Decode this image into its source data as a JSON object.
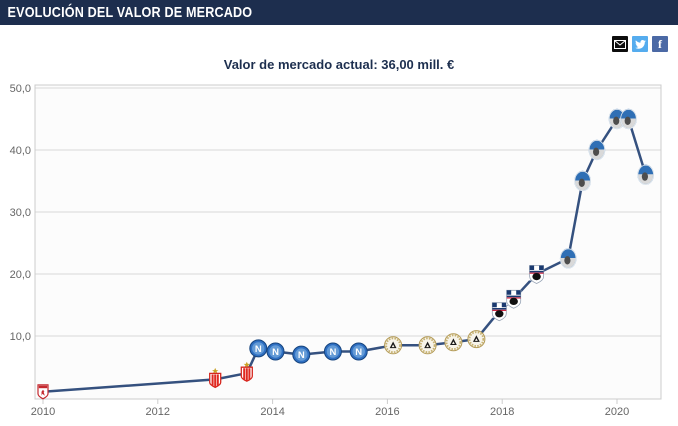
{
  "header": {
    "title": "EVOLUCIÓN DEL VALOR DE MERCADO"
  },
  "share": {
    "icons": [
      {
        "name": "email-share-icon"
      },
      {
        "name": "twitter-share-icon",
        "label": ""
      },
      {
        "name": "facebook-share-icon",
        "label": "f"
      }
    ]
  },
  "chart_data": {
    "type": "line",
    "title": "Evolución del valor de mercado",
    "subtitle": "Valor de mercado actual: 36,00 mill. €",
    "xlabel": "",
    "ylabel": "",
    "ylim": [
      0,
      52
    ],
    "yticks": [
      10,
      20,
      30,
      40,
      50
    ],
    "ytick_labels": [
      "10,0",
      "20,0",
      "30,0",
      "40,0",
      "50,0"
    ],
    "xticks": [
      2010,
      2012,
      2014,
      2016,
      2018,
      2020
    ],
    "xtick_labels": [
      "2010",
      "2012",
      "2014",
      "2016",
      "2018",
      "2020"
    ],
    "grid": true,
    "legend": "none",
    "line_color": "#35517f",
    "unit": "mill. €",
    "clubs": {
      "america": "América de Cali",
      "estudiantes": "Estudiantes de La Plata",
      "napoli": "SSC Napoli",
      "udinese": "Udinese Calcio",
      "sampdoria": "UC Sampdoria",
      "atalanta": "Atalanta BC"
    },
    "points": [
      {
        "year": 2010.0,
        "value": 1.0,
        "club": "america"
      },
      {
        "year": 2013.0,
        "value": 3.0,
        "club": "estudiantes"
      },
      {
        "year": 2013.55,
        "value": 4.0,
        "club": "estudiantes"
      },
      {
        "year": 2013.75,
        "value": 8.0,
        "club": "napoli"
      },
      {
        "year": 2014.05,
        "value": 7.5,
        "club": "napoli"
      },
      {
        "year": 2014.5,
        "value": 7.0,
        "club": "napoli"
      },
      {
        "year": 2015.05,
        "value": 7.5,
        "club": "napoli"
      },
      {
        "year": 2015.5,
        "value": 7.5,
        "club": "napoli"
      },
      {
        "year": 2016.1,
        "value": 8.5,
        "club": "udinese"
      },
      {
        "year": 2016.7,
        "value": 8.5,
        "club": "udinese"
      },
      {
        "year": 2017.15,
        "value": 9.0,
        "club": "udinese"
      },
      {
        "year": 2017.55,
        "value": 9.5,
        "club": "udinese"
      },
      {
        "year": 2017.95,
        "value": 14.0,
        "club": "sampdoria"
      },
      {
        "year": 2018.2,
        "value": 16.0,
        "club": "sampdoria"
      },
      {
        "year": 2018.6,
        "value": 20.0,
        "club": "sampdoria"
      },
      {
        "year": 2019.15,
        "value": 22.5,
        "club": "atalanta"
      },
      {
        "year": 2019.4,
        "value": 35.0,
        "club": "atalanta"
      },
      {
        "year": 2019.65,
        "value": 40.0,
        "club": "atalanta"
      },
      {
        "year": 2020.0,
        "value": 45.0,
        "club": "atalanta"
      },
      {
        "year": 2020.2,
        "value": 45.0,
        "club": "atalanta"
      },
      {
        "year": 2020.5,
        "value": 36.0,
        "club": "atalanta"
      }
    ]
  }
}
